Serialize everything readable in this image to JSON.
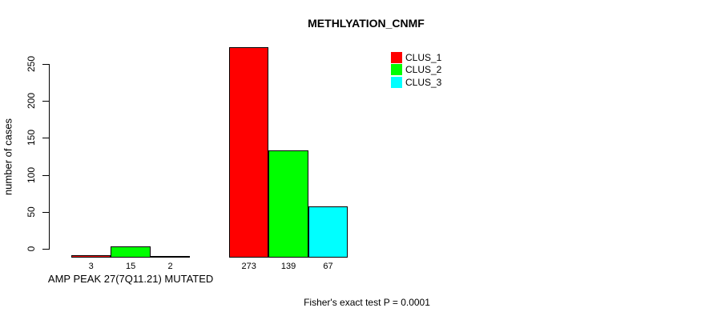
{
  "chart_data": {
    "type": "bar",
    "title": "METHLYATION_CNMF",
    "ylabel": "number of cases",
    "categories": [
      "AMP PEAK 27(7Q11.21) MUTATED",
      ""
    ],
    "series": [
      {
        "name": "CLUS_1",
        "color": "#FF0000",
        "values": [
          3,
          273
        ]
      },
      {
        "name": "CLUS_2",
        "color": "#00FF00",
        "values": [
          15,
          139
        ]
      },
      {
        "name": "CLUS_3",
        "color": "#00FFFF",
        "values": [
          2,
          67
        ]
      }
    ],
    "yticks": [
      0,
      50,
      100,
      150,
      200,
      250
    ],
    "ylim": [
      0,
      250
    ],
    "grid": false,
    "legend_position": "top-right",
    "bar_value_labels_shown": true,
    "annotation": "Fisher's exact test P = 0.0001"
  },
  "colors": {
    "clus_1": "#FF0000",
    "clus_2": "#00FF00",
    "clus_3": "#00FFFF",
    "axis": "#000000",
    "background": "#FFFFFF"
  }
}
